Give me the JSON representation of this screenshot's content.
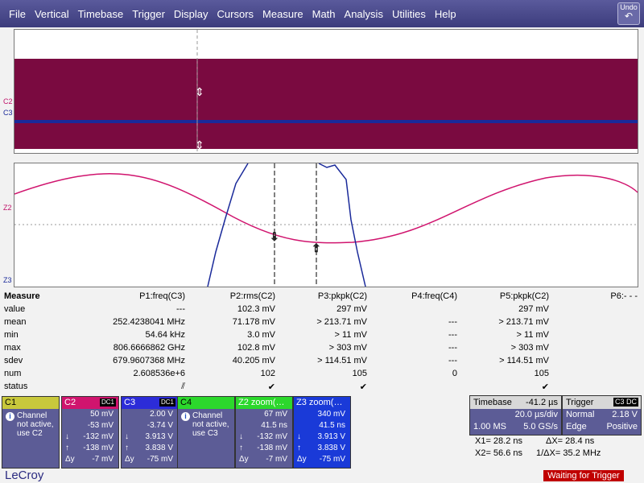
{
  "menu": [
    "File",
    "Vertical",
    "Timebase",
    "Trigger",
    "Display",
    "Cursors",
    "Measure",
    "Math",
    "Analysis",
    "Utilities",
    "Help"
  ],
  "undo": {
    "label": "Undo"
  },
  "grid_labels": {
    "c2": "C2",
    "c3": "C3",
    "z2": "Z2",
    "z3": "Z3"
  },
  "measure": {
    "title": "Measure",
    "headers": [
      "P1:freq(C3)",
      "P2:rms(C2)",
      "P3:pkpk(C2)",
      "P4:freq(C4)",
      "P5:pkpk(C2)",
      "P6:- - -"
    ],
    "rows": [
      {
        "label": "value",
        "cells": [
          "---",
          "102.3 mV",
          "297 mV",
          "",
          "297 mV",
          ""
        ]
      },
      {
        "label": "mean",
        "cells": [
          "252.4238041 MHz",
          "71.178 mV",
          "> 213.71 mV",
          "---",
          "> 213.71 mV",
          ""
        ]
      },
      {
        "label": "min",
        "cells": [
          "54.64 kHz",
          "3.0 mV",
          "> 11 mV",
          "---",
          "> 11 mV",
          ""
        ]
      },
      {
        "label": "max",
        "cells": [
          "806.6666862 GHz",
          "102.8 mV",
          "> 303 mV",
          "---",
          "> 303 mV",
          ""
        ]
      },
      {
        "label": "sdev",
        "cells": [
          "679.9607368 MHz",
          "40.205 mV",
          "> 114.51 mV",
          "---",
          "> 114.51 mV",
          ""
        ]
      },
      {
        "label": "num",
        "cells": [
          "2.608536e+6",
          "102",
          "105",
          "0",
          "105",
          ""
        ]
      },
      {
        "label": "status",
        "cells": [
          "⫽",
          "✔",
          "✔",
          "",
          "✔",
          ""
        ]
      }
    ]
  },
  "channels": [
    {
      "name": "C1",
      "tag": "",
      "note": "Channel not active, use C2",
      "color": "#c8c83c"
    },
    {
      "name": "C2",
      "tag": "DC1",
      "v1": "50 mV",
      "v2": "-53 mV",
      "v3": "-132 mV",
      "v4": "-138 mV",
      "v5": "-7 mV",
      "color": "#d0146e"
    },
    {
      "name": "C3",
      "tag": "DC1",
      "v1": "2.00 V",
      "v2": "-3.74 V",
      "v3": "3.913 V",
      "v4": "3.838 V",
      "v5": "-75 mV",
      "color": "#2c2cd8"
    },
    {
      "name": "C4",
      "tag": "",
      "note": "Channel not active, use C3",
      "color": "#2cd82c"
    },
    {
      "name": "Z2 zoom(…",
      "tag": "",
      "v1": "67 mV",
      "v2": "41.5 ns",
      "v3": "-132 mV",
      "v4": "-138 mV",
      "v5": "-7 mV",
      "color": "#d0146e"
    },
    {
      "name": "Z3 zoom(…",
      "tag": "",
      "v1": "340 mV",
      "v2": "41.5 ns",
      "v3": "3.913 V",
      "v4": "3.838 V",
      "v5": "-75 mV",
      "color": "#2c2cd8"
    }
  ],
  "timebase": {
    "label": "Timebase",
    "offset": "-41.2 µs",
    "div": "20.0 µs/div",
    "ms": "1.00 MS",
    "rate": "5.0 GS/s"
  },
  "trigger": {
    "label": "Trigger",
    "tags": "C3 DC",
    "mode": "Normal",
    "level": "2.18 V",
    "type": "Edge",
    "slope": "Positive"
  },
  "cursors": {
    "x1": "X1= 28.2 ns",
    "dx": "ΔX= 28.4 ns",
    "x2": "X2= 56.6 ns",
    "inv": "1/ΔX= 35.2 MHz"
  },
  "logo": "LeCroy",
  "status": "Waiting for Trigger"
}
